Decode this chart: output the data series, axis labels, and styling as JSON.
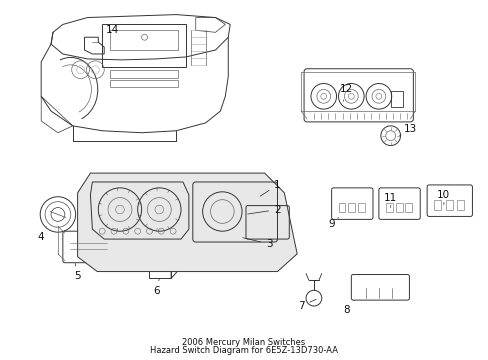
{
  "title": "2006 Mercury Milan Switches\nHazard Switch Diagram for 6E5Z-13D730-AA",
  "bg_color": "#ffffff",
  "fig_width": 4.89,
  "fig_height": 3.6,
  "dpi": 100
}
